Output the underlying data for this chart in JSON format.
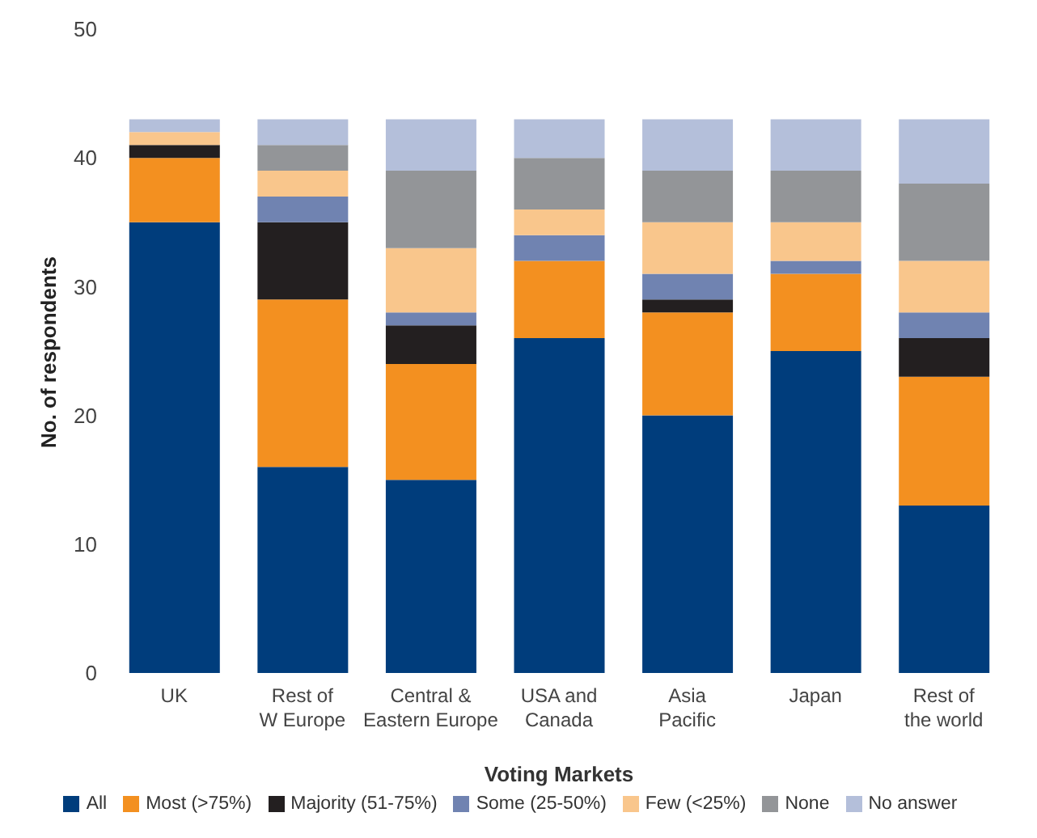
{
  "chart_data": {
    "type": "bar",
    "stacked": true,
    "xlabel": "Voting Markets",
    "ylabel": "No. of respondents",
    "categories": [
      "UK",
      "Rest of\nW Europe",
      "Central &\nEastern Europe",
      "USA and\nCanada",
      "Asia\nPacific",
      "Japan",
      "Rest of\nthe world"
    ],
    "series": [
      {
        "name": "All",
        "color": "#003d7c",
        "values": [
          35,
          16,
          15,
          26,
          20,
          25,
          13
        ]
      },
      {
        "name": "Most (>75%)",
        "color": "#f39020",
        "values": [
          5,
          13,
          9,
          6,
          8,
          6,
          10
        ]
      },
      {
        "name": "Majority (51-75%)",
        "color": "#231f20",
        "values": [
          1,
          6,
          3,
          0,
          1,
          0,
          3
        ]
      },
      {
        "name": "Some (25-50%)",
        "color": "#7083b1",
        "values": [
          0,
          2,
          1,
          2,
          2,
          1,
          2
        ]
      },
      {
        "name": "Few (<25%)",
        "color": "#f9c68c",
        "values": [
          1,
          2,
          5,
          2,
          4,
          3,
          4
        ]
      },
      {
        "name": "None",
        "color": "#939598",
        "values": [
          0,
          2,
          6,
          4,
          4,
          4,
          6
        ]
      },
      {
        "name": "No answer",
        "color": "#b4bfda",
        "values": [
          1,
          2,
          4,
          3,
          4,
          4,
          5
        ]
      }
    ],
    "ylim": [
      0,
      50
    ],
    "yticks": [
      0,
      10,
      20,
      30,
      40,
      50
    ],
    "grid": false,
    "legend": "bottom"
  }
}
